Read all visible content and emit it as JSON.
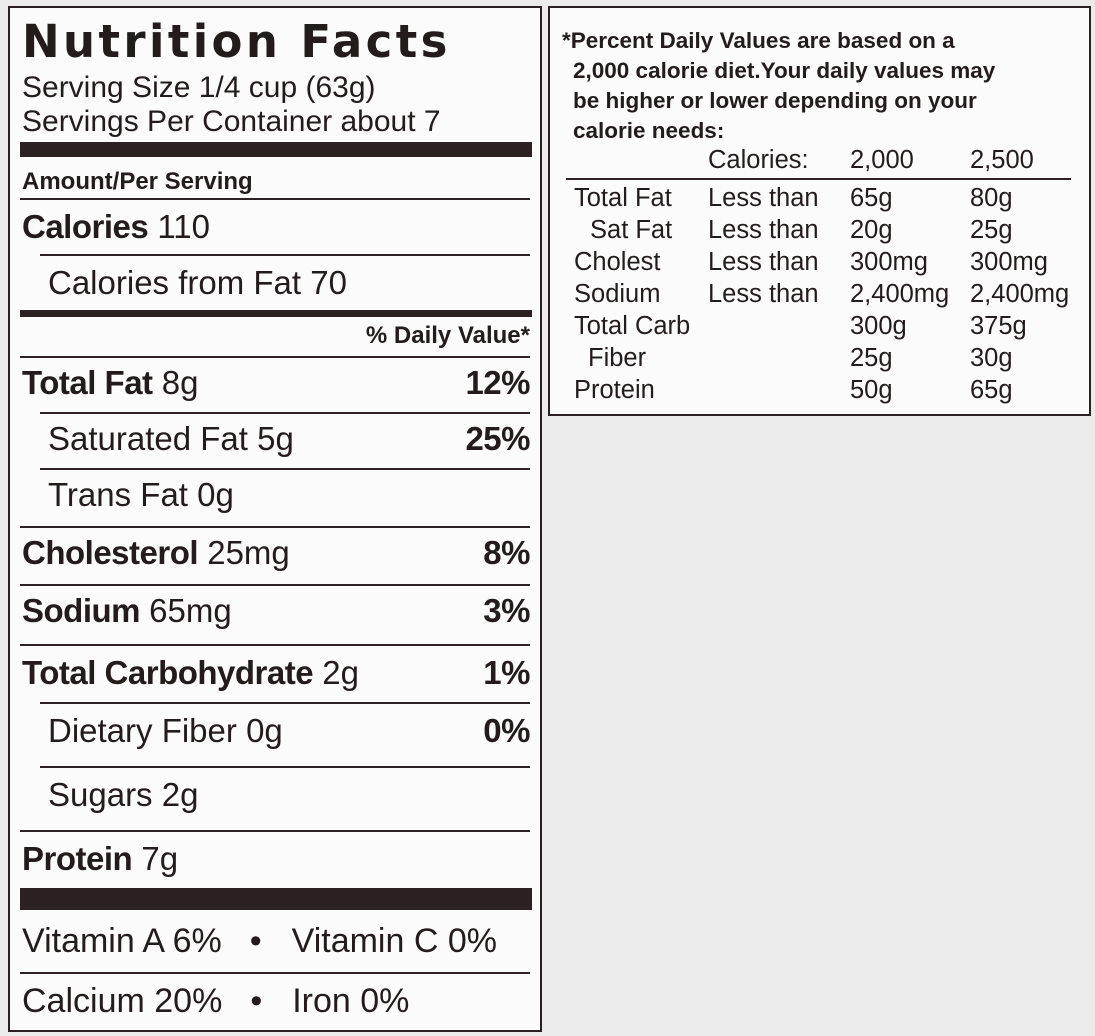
{
  "title": "Nutrition Facts",
  "serving_size": "Serving Size 1/4 cup (63g)",
  "servings_per_container": "Servings Per Container about 7",
  "amount_per_serving": "Amount/Per Serving",
  "calories": {
    "label": "Calories",
    "value": "110"
  },
  "calories_from_fat": "Calories from Fat 70",
  "daily_value_header": "% Daily Value*",
  "nutrients": [
    {
      "label": "Total Fat",
      "amount": "8g",
      "dv": "12%"
    },
    {
      "label": "Saturated Fat",
      "amount": "5g",
      "dv": "25%"
    },
    {
      "label": "Trans Fat",
      "amount": "0g",
      "dv": ""
    },
    {
      "label": "Cholesterol",
      "amount": "25mg",
      "dv": "8%"
    },
    {
      "label": "Sodium",
      "amount": "65mg",
      "dv": "3%"
    },
    {
      "label": "Total Carbohydrate",
      "amount": "2g",
      "dv": "1%"
    },
    {
      "label": "Dietary Fiber",
      "amount": "0g",
      "dv": "0%"
    },
    {
      "label": "Sugars",
      "amount": "2g",
      "dv": ""
    },
    {
      "label": "Protein",
      "amount": "7g",
      "dv": ""
    }
  ],
  "vitamins": {
    "row1": {
      "left": "Vitamin A 6%",
      "right": "Vitamin C 0%"
    },
    "row2": {
      "left": "Calcium 20%",
      "right": "Iron 0%"
    },
    "separator": "•"
  },
  "footnote": {
    "lines": [
      "*Percent Daily Values are based on a",
      "2,000 calorie diet.Your daily values may",
      "be higher or lower depending on your",
      "calorie needs:"
    ],
    "header": [
      "Calories:",
      "2,000",
      "2,500"
    ],
    "rows": [
      [
        "Total Fat",
        "Less than",
        "65g",
        "80g"
      ],
      [
        "Sat Fat",
        "Less than",
        "20g",
        "25g"
      ],
      [
        "Cholest",
        "Less than",
        "300mg",
        "300mg"
      ],
      [
        "Sodium",
        "Less than",
        "2,400mg",
        "2,400mg"
      ],
      [
        "Total Carb",
        "",
        "300g",
        "375g"
      ],
      [
        "Fiber",
        "",
        "25g",
        "30g"
      ],
      [
        "Protein",
        "",
        "50g",
        "65g"
      ]
    ]
  }
}
